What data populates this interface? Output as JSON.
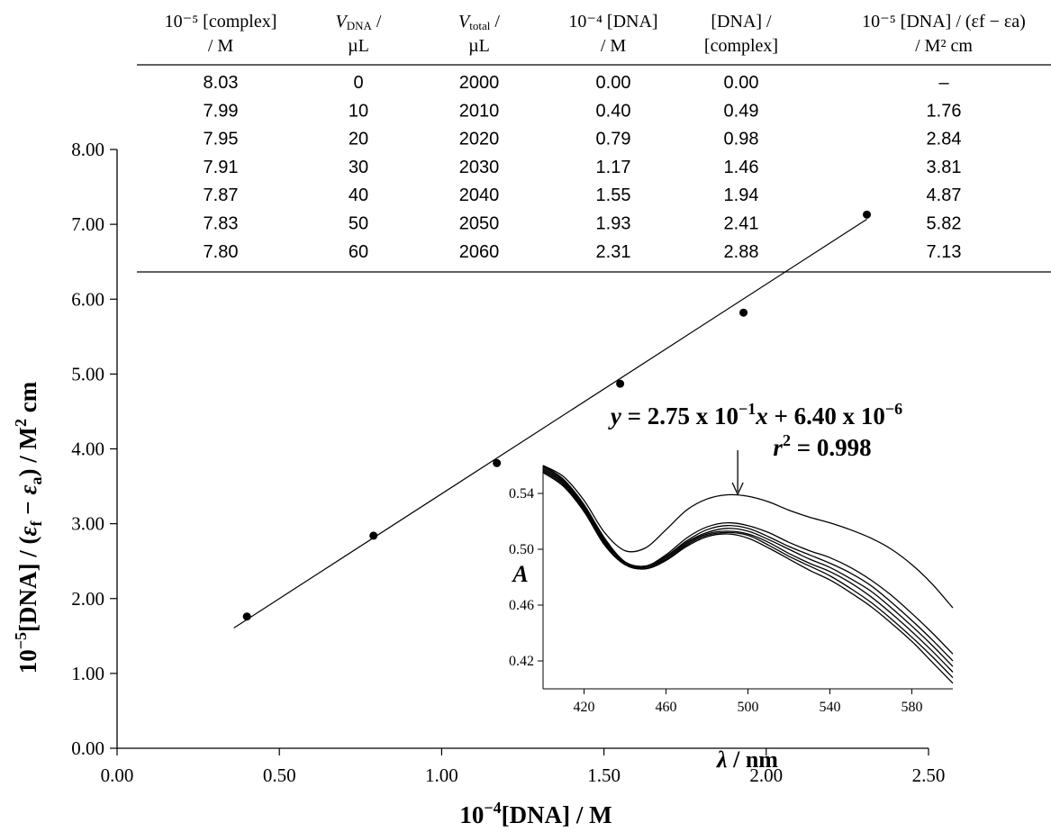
{
  "table": {
    "columns": [
      {
        "line1": "10⁻⁵ [complex]",
        "line2": "/ M"
      },
      {
        "line1": "VDNA /",
        "line2": "µL",
        "var": "V",
        "sub": "DNA"
      },
      {
        "line1": "Vtotal /",
        "line2": "µL",
        "var": "V",
        "sub": "total"
      },
      {
        "line1": "10⁻⁴ [DNA]",
        "line2": "/ M"
      },
      {
        "line1": "[DNA] /",
        "line2": "[complex]"
      },
      {
        "line1": "10⁻⁵ [DNA] / (εf − εa)",
        "line2": "/ M² cm"
      }
    ],
    "rows": [
      [
        "8.03",
        "0",
        "2000",
        "0.00",
        "0.00",
        "–"
      ],
      [
        "7.99",
        "10",
        "2010",
        "0.40",
        "0.49",
        "1.76"
      ],
      [
        "7.95",
        "20",
        "2020",
        "0.79",
        "0.98",
        "2.84"
      ],
      [
        "7.91",
        "30",
        "2030",
        "1.17",
        "1.46",
        "3.81"
      ],
      [
        "7.87",
        "40",
        "2040",
        "1.55",
        "1.94",
        "4.87"
      ],
      [
        "7.83",
        "50",
        "2050",
        "1.93",
        "2.41",
        "5.82"
      ],
      [
        "7.80",
        "60",
        "2060",
        "2.31",
        "2.88",
        "7.13"
      ]
    ]
  },
  "chart_data": [
    {
      "type": "scatter",
      "xlabel": "10⁻⁴[DNA] / M",
      "ylabel": "10⁻⁵[DNA] / (εf − εa) / M² cm",
      "xlim": [
        0,
        2.5
      ],
      "ylim": [
        0,
        8
      ],
      "xticks": [
        "0.00",
        "0.50",
        "1.00",
        "1.50",
        "2.00",
        "2.50"
      ],
      "yticks": [
        "0.00",
        "1.00",
        "2.00",
        "3.00",
        "4.00",
        "5.00",
        "6.00",
        "7.00",
        "8.00"
      ],
      "points": [
        [
          0.4,
          1.76
        ],
        [
          0.79,
          2.84
        ],
        [
          1.17,
          3.81
        ],
        [
          1.55,
          4.87
        ],
        [
          1.93,
          5.82
        ],
        [
          2.31,
          7.13
        ]
      ],
      "fit": {
        "slope": 2.8,
        "intercept": 0.6,
        "x_range": [
          0.4,
          2.31
        ]
      },
      "equation": "y = 2.75 x 10⁻¹ x + 6.40 x 10⁻⁶",
      "r2": "r² = 0.998",
      "grid": false
    },
    {
      "type": "line",
      "xlabel": "λ / nm",
      "ylabel": "A",
      "xlim": [
        400,
        600
      ],
      "ylim": [
        0.4,
        0.56
      ],
      "xticks": [
        "420",
        "460",
        "500",
        "540",
        "580"
      ],
      "yticks": [
        "0.42",
        "0.46",
        "0.50",
        "0.54"
      ],
      "arrow_at": 495,
      "x": [
        400,
        410,
        420,
        430,
        440,
        450,
        460,
        470,
        480,
        490,
        500,
        510,
        520,
        530,
        540,
        550,
        560,
        570,
        580,
        590,
        600
      ],
      "series": [
        {
          "values": [
            0.56,
            0.552,
            0.535,
            0.512,
            0.499,
            0.501,
            0.514,
            0.528,
            0.536,
            0.539,
            0.538,
            0.534,
            0.528,
            0.523,
            0.519,
            0.514,
            0.508,
            0.5,
            0.489,
            0.475,
            0.458
          ]
        },
        {
          "values": [
            0.56,
            0.55,
            0.532,
            0.508,
            0.491,
            0.488,
            0.496,
            0.508,
            0.516,
            0.519,
            0.517,
            0.512,
            0.505,
            0.499,
            0.494,
            0.487,
            0.478,
            0.467,
            0.454,
            0.44,
            0.425
          ]
        },
        {
          "values": [
            0.559,
            0.549,
            0.531,
            0.507,
            0.491,
            0.488,
            0.495,
            0.506,
            0.514,
            0.517,
            0.515,
            0.509,
            0.502,
            0.496,
            0.49,
            0.483,
            0.474,
            0.462,
            0.449,
            0.435,
            0.42
          ]
        },
        {
          "values": [
            0.558,
            0.548,
            0.53,
            0.506,
            0.49,
            0.487,
            0.494,
            0.505,
            0.512,
            0.515,
            0.513,
            0.507,
            0.5,
            0.493,
            0.487,
            0.479,
            0.47,
            0.458,
            0.445,
            0.431,
            0.416
          ]
        },
        {
          "values": [
            0.557,
            0.547,
            0.529,
            0.505,
            0.49,
            0.487,
            0.493,
            0.504,
            0.511,
            0.513,
            0.511,
            0.505,
            0.497,
            0.49,
            0.484,
            0.476,
            0.466,
            0.454,
            0.441,
            0.427,
            0.412
          ]
        },
        {
          "values": [
            0.556,
            0.546,
            0.528,
            0.504,
            0.489,
            0.486,
            0.492,
            0.503,
            0.51,
            0.512,
            0.51,
            0.503,
            0.495,
            0.488,
            0.481,
            0.472,
            0.462,
            0.45,
            0.437,
            0.423,
            0.408
          ]
        },
        {
          "values": [
            0.555,
            0.545,
            0.527,
            0.503,
            0.489,
            0.486,
            0.492,
            0.502,
            0.509,
            0.511,
            0.508,
            0.501,
            0.493,
            0.485,
            0.478,
            0.469,
            0.459,
            0.447,
            0.434,
            0.419,
            0.404
          ]
        }
      ]
    }
  ]
}
